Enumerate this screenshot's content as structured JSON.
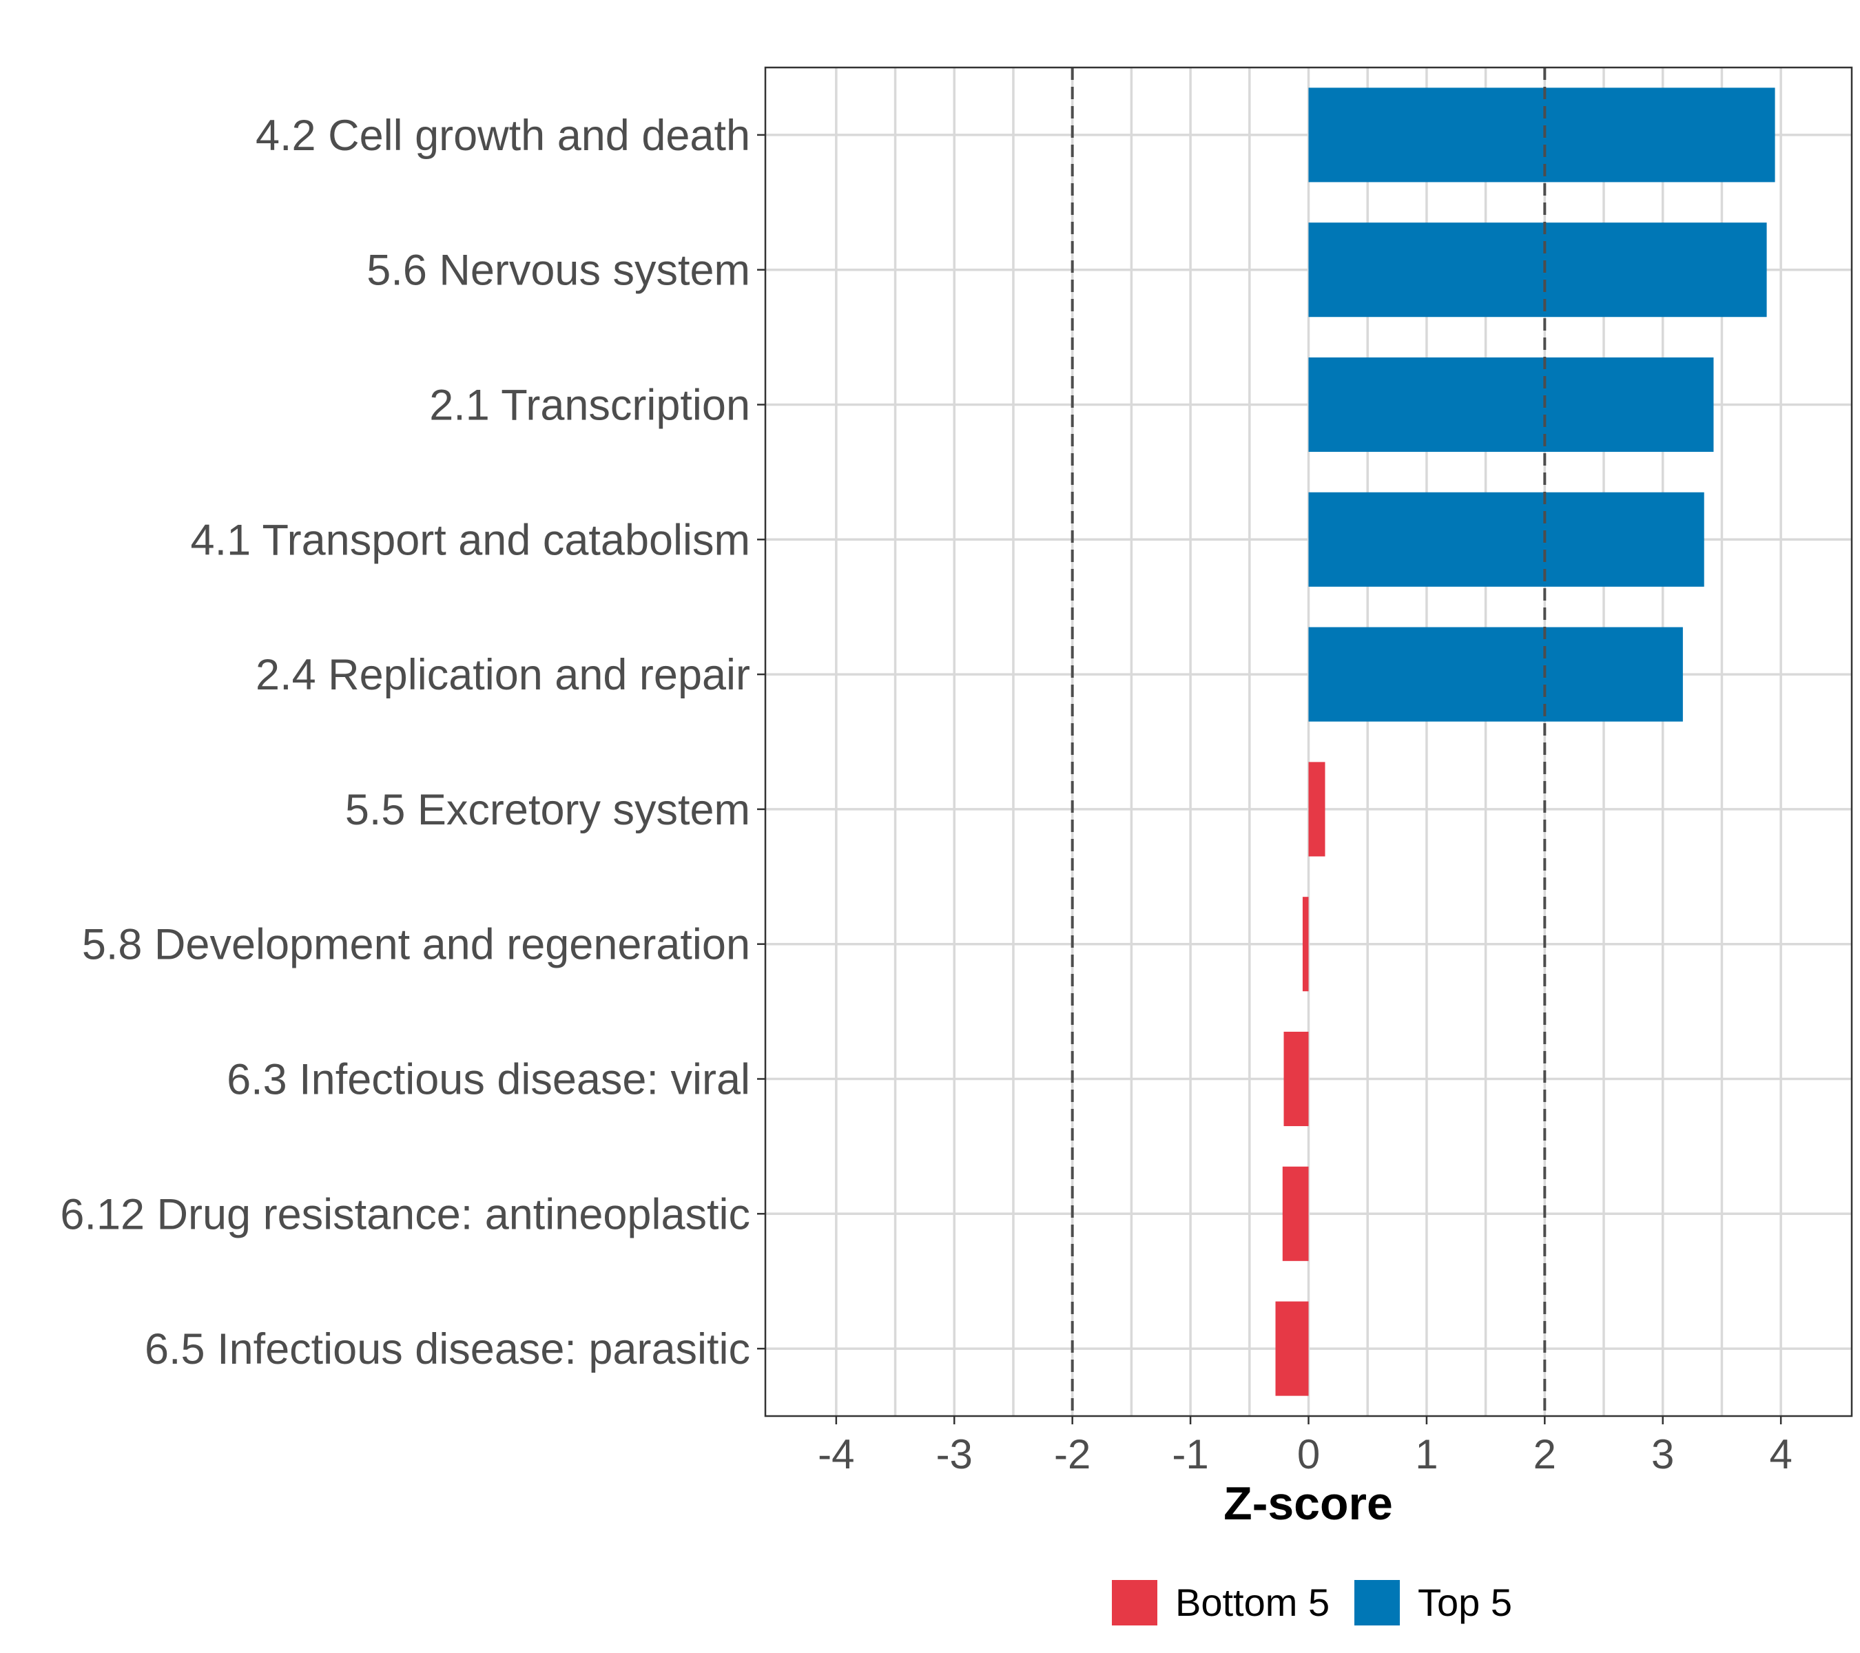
{
  "chart_data": {
    "type": "bar",
    "orientation": "horizontal",
    "title": "",
    "xlabel": "Z-score",
    "ylabel": "",
    "xlim": [
      -4.6,
      4.6
    ],
    "x_ticks": [
      "-4",
      "-3",
      "-2",
      "-1",
      "0",
      "1",
      "2",
      "3",
      "4"
    ],
    "x_tick_values": [
      -4,
      -3,
      -2,
      -1,
      0,
      1,
      2,
      3,
      4
    ],
    "reference_lines": [
      -2,
      2
    ],
    "grid": true,
    "categories": [
      "4.2 Cell growth and death",
      "5.6 Nervous system",
      "2.1 Transcription",
      "4.1 Transport and catabolism",
      "2.4 Replication and repair",
      "5.5 Excretory system",
      "5.8 Development and regeneration",
      "6.3 Infectious disease: viral",
      "6.12 Drug resistance: antineoplastic",
      "6.5 Infectious disease: parasitic"
    ],
    "values": [
      3.95,
      3.88,
      3.43,
      3.35,
      3.17,
      0.14,
      -0.05,
      -0.21,
      -0.22,
      -0.28
    ],
    "groups": [
      "Top 5",
      "Top 5",
      "Top 5",
      "Top 5",
      "Top 5",
      "Bottom 5",
      "Bottom 5",
      "Bottom 5",
      "Bottom 5",
      "Bottom 5"
    ],
    "legend": {
      "position": "bottom",
      "entries": [
        {
          "name": "Bottom 5",
          "color": "#e63946"
        },
        {
          "name": "Top 5",
          "color": "#0077b6"
        }
      ]
    },
    "colors": {
      "Top 5": "#0077b6",
      "Bottom 5": "#e63946"
    }
  }
}
